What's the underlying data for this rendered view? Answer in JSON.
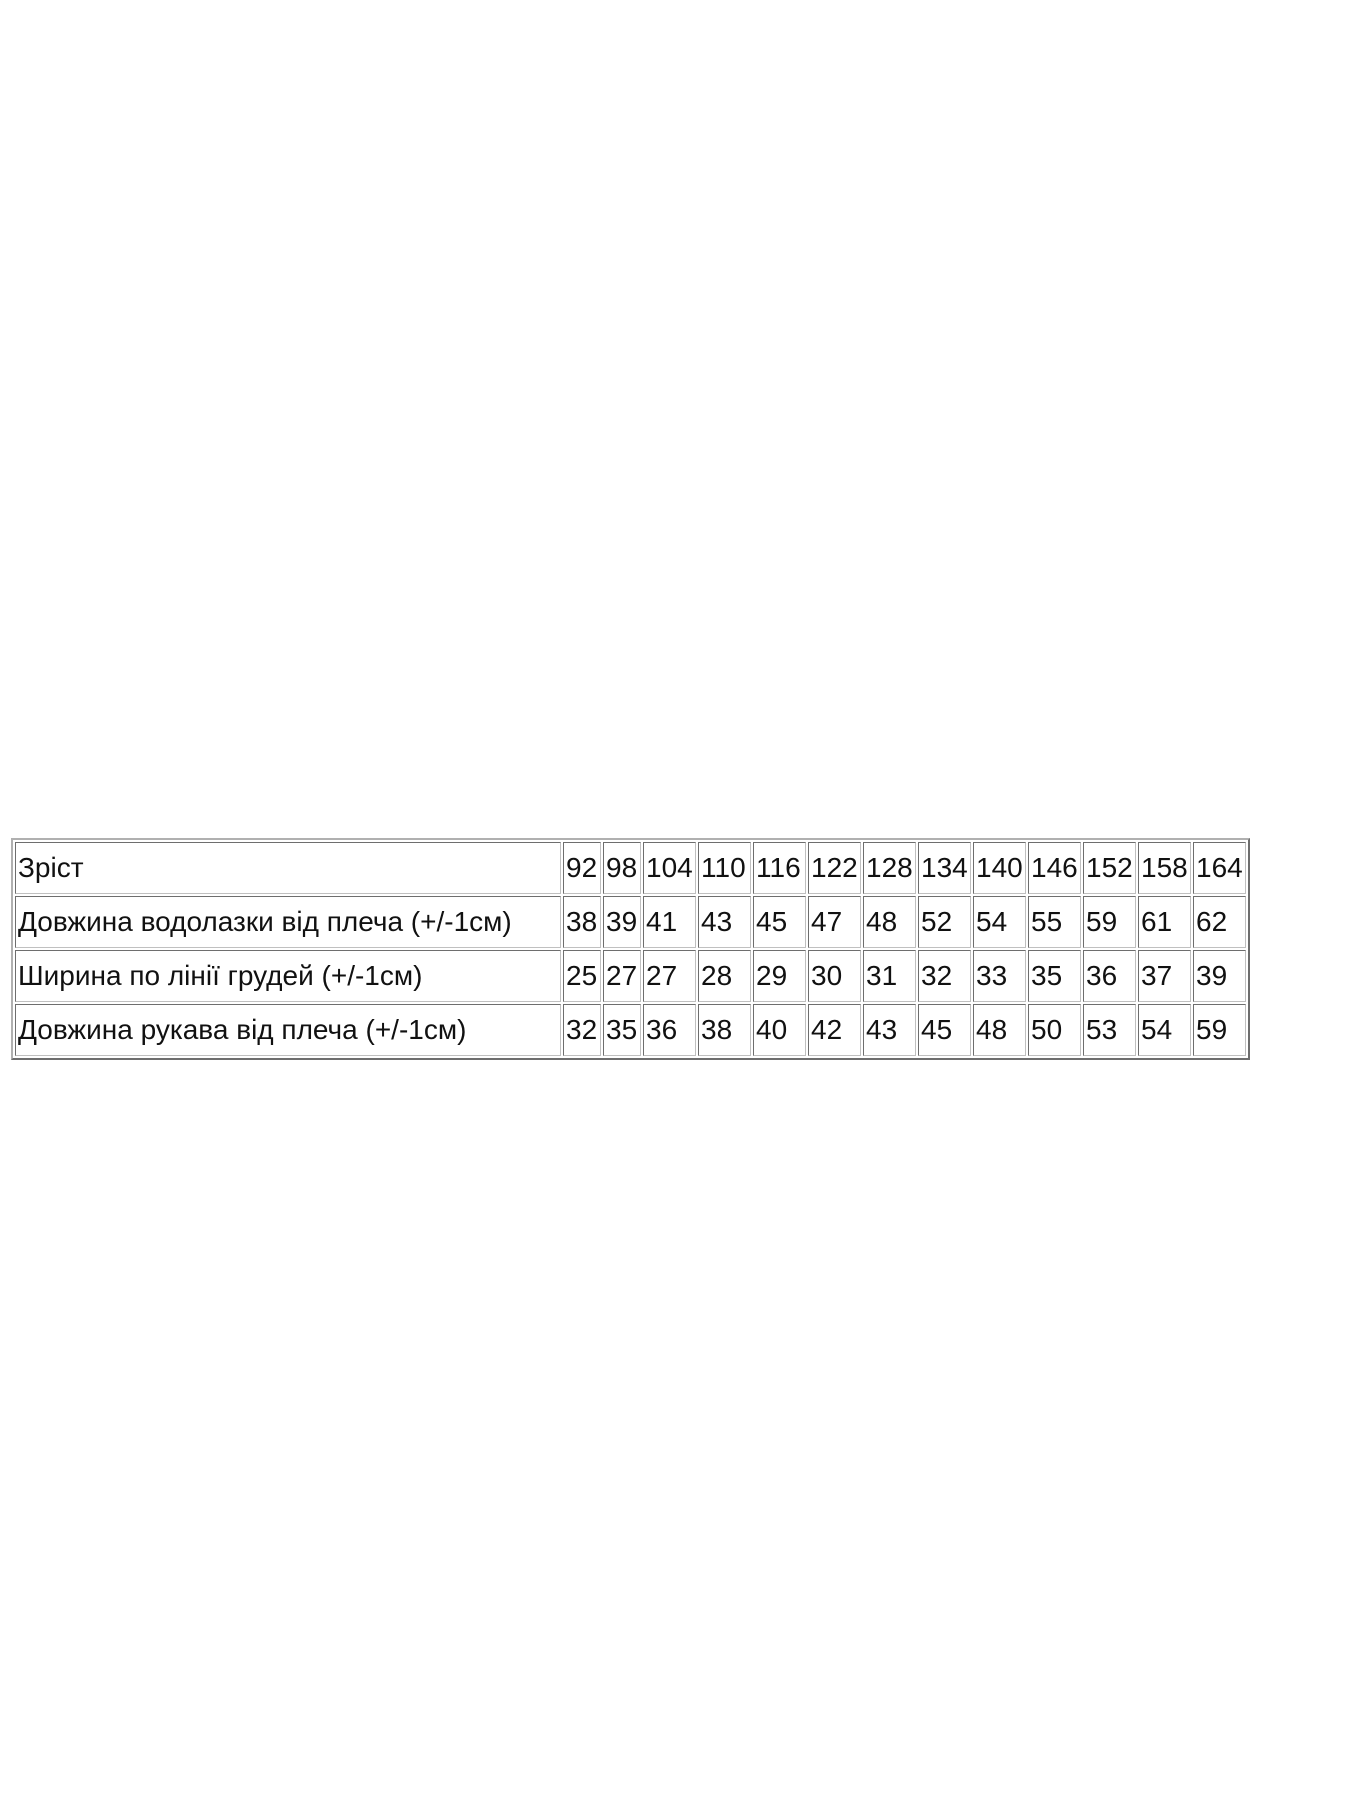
{
  "table": {
    "header": {
      "label": "Зріст",
      "values": [
        "92",
        "98",
        "104",
        "110",
        "116",
        "122",
        "128",
        "134",
        "140",
        "146",
        "152",
        "158",
        "164"
      ]
    },
    "rows": [
      {
        "label": "Довжина водолазки від плеча (+/-1см)",
        "values": [
          "38",
          "39",
          "41",
          "43",
          "45",
          "47",
          "48",
          "52",
          "54",
          "55",
          "59",
          "61",
          "62"
        ]
      },
      {
        "label": "Ширина по лінії грудей (+/-1см)",
        "values": [
          "25",
          "27",
          "27",
          "28",
          "29",
          "30",
          "31",
          "32",
          "33",
          "35",
          "36",
          "37",
          "39"
        ]
      },
      {
        "label": "Довжина рукава від плеча (+/-1см)",
        "values": [
          "32",
          "35",
          "36",
          "38",
          "40",
          "42",
          "43",
          "45",
          "48",
          "50",
          "53",
          "54",
          "59"
        ]
      }
    ]
  }
}
